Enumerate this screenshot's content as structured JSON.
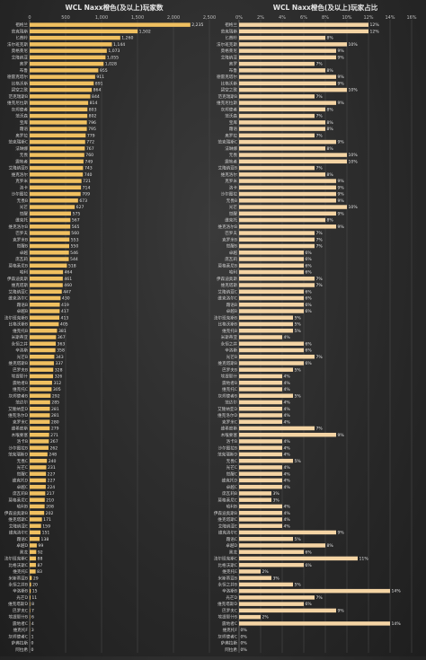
{
  "chart_data": [
    {
      "type": "bar",
      "orientation": "horizontal",
      "title": "WCL Naxx橙色(及以上)玩家数",
      "xlim": [
        0,
        2500
      ],
      "xticks": [
        0,
        500,
        1000,
        1500,
        2000,
        2500
      ],
      "xtick_labels": [
        "0",
        "500",
        "1,000",
        "1,500",
        "2,000",
        "2,500"
      ],
      "grid": true,
      "bar_color": "#f0c060",
      "categories": [
        "祖格兰",
        "范克瑞斯",
        "匕首岭",
        "法尔班克斯",
        "莫格莱尼",
        "艾隆纳亚",
        "奥罗",
        "布鲁",
        "德雷克塔尔",
        "比格沃斯",
        "碧空之歌",
        "范克瑞斯B",
        "维克尼拉斯",
        "灰烬使者",
        "范沃森",
        "宝库",
        "霜语",
        "奥罗拉",
        "范克瑞斯C",
        "法琳娜",
        "无畏",
        "震地者",
        "艾隆纳亚B",
        "维克洛尔",
        "克罗米",
        "洛卡",
        "沙尔图拉",
        "无畏B",
        "光芒",
        "觉醒",
        "维克托",
        "维克洛尔B",
        "巴罗夫",
        "克罗米B",
        "觉醒B",
        "卓越",
        "席瓦莉",
        "莫格莱尼B",
        "哈利",
        "伊森迪奥斯",
        "维克塔斯",
        "艾隆纳亚C",
        "维克洛尔C",
        "霜语B",
        "卓越B",
        "法尔班克斯B",
        "比格沃斯B",
        "维克托B",
        "米斯蒂亚",
        "永恒之井",
        "辛洛斯",
        "光芒B",
        "维克塔斯B",
        "巴罗夫B",
        "埃提耶什",
        "震地者B",
        "维克托C",
        "灰烬使者B",
        "范达尔",
        "艾隆纳亚D",
        "维克洛尔D",
        "克罗米C",
        "维希度斯",
        "木喉要塞",
        "洛卡B",
        "沙尔图拉B",
        "范克瑞斯D",
        "无畏C",
        "光芒C",
        "觉醒C",
        "维克托D",
        "卓越C",
        "席瓦莉B",
        "莫格莱尼C",
        "哈利B",
        "伊森迪奥斯B",
        "维克塔斯C",
        "艾隆纳亚E",
        "维克洛尔E",
        "霜语C",
        "卓越D",
        "黑龙",
        "法尔班克斯C",
        "比格沃斯C",
        "维克托E",
        "米斯蒂亚B",
        "永恒之井B",
        "辛洛斯B",
        "光芒D",
        "维克塔斯D",
        "巴罗夫C",
        "埃提耶什B",
        "震地者C",
        "维克托F",
        "灰烬使者C",
        "萨弗拉斯",
        "阿拉希"
      ],
      "values": [
        2235,
        1502,
        1260,
        1144,
        1073,
        1055,
        1028,
        955,
        911,
        891,
        864,
        844,
        814,
        803,
        802,
        796,
        795,
        779,
        772,
        767,
        760,
        749,
        743,
        740,
        721,
        714,
        709,
        673,
        627,
        575,
        567,
        565,
        560,
        553,
        550,
        546,
        544,
        518,
        464,
        461,
        460,
        447,
        430,
        419,
        417,
        413,
        405,
        381,
        367,
        363,
        358,
        343,
        337,
        328,
        326,
        312,
        305,
        292,
        285,
        281,
        281,
        280,
        279,
        271,
        267,
        262,
        248,
        240,
        231,
        227,
        227,
        224,
        217,
        210,
        208,
        202,
        171,
        159,
        151,
        138,
        99,
        92,
        88,
        87,
        83,
        29,
        20,
        15,
        11,
        8,
        7,
        6,
        4,
        3,
        1,
        0,
        0
      ]
    },
    {
      "type": "bar",
      "orientation": "horizontal",
      "title": "WCL Naxx橙色(及以上)玩家占比",
      "xlim": [
        0,
        16
      ],
      "xticks": [
        0,
        2,
        4,
        6,
        8,
        10,
        12,
        14,
        16
      ],
      "xtick_labels": [
        "0%",
        "2%",
        "4%",
        "6%",
        "8%",
        "10%",
        "12%",
        "14%",
        "16%"
      ],
      "grid": true,
      "bar_color": "#f4d4a4",
      "categories": [
        "祖格兰",
        "范克瑞斯",
        "匕首岭",
        "法尔班克斯",
        "莫格莱尼",
        "艾隆纳亚",
        "奥罗",
        "布鲁",
        "德雷克塔尔",
        "比格沃斯",
        "碧空之歌",
        "范克瑞斯B",
        "维克尼拉斯",
        "灰烬使者",
        "范沃森",
        "宝库",
        "霜语",
        "奥罗拉",
        "范克瑞斯C",
        "法琳娜",
        "无畏",
        "震地者",
        "艾隆纳亚B",
        "维克洛尔",
        "克罗米",
        "洛卡",
        "沙尔图拉",
        "无畏B",
        "光芒",
        "觉醒",
        "维克托",
        "维克洛尔B",
        "巴罗夫",
        "克罗米B",
        "觉醒B",
        "卓越",
        "席瓦莉",
        "莫格莱尼B",
        "哈利",
        "伊森迪奥斯",
        "维克塔斯",
        "艾隆纳亚C",
        "维克洛尔C",
        "霜语B",
        "卓越B",
        "法尔班克斯B",
        "比格沃斯B",
        "维克托B",
        "米斯蒂亚",
        "永恒之井",
        "辛洛斯",
        "光芒B",
        "维克塔斯B",
        "巴罗夫B",
        "埃提耶什",
        "震地者B",
        "维克托C",
        "灰烬使者B",
        "范达尔",
        "艾隆纳亚D",
        "维克洛尔D",
        "克罗米C",
        "维希度斯",
        "木喉要塞",
        "洛卡B",
        "沙尔图拉B",
        "范克瑞斯D",
        "无畏C",
        "光芒C",
        "觉醒C",
        "维克托D",
        "卓越C",
        "席瓦莉B",
        "莫格莱尼C",
        "哈利B",
        "伊森迪奥斯B",
        "维克塔斯C",
        "艾隆纳亚E",
        "维克洛尔E",
        "霜语C",
        "卓越D",
        "黑龙",
        "法尔班克斯C",
        "比格沃斯C",
        "维克托E",
        "米斯蒂亚B",
        "永恒之井B",
        "辛洛斯B",
        "光芒D",
        "维克塔斯D",
        "巴罗夫C",
        "埃提耶什B",
        "震地者C",
        "维克托F",
        "灰烬使者C",
        "萨弗拉斯",
        "阿拉希"
      ],
      "values": [
        12,
        12,
        8,
        10,
        9,
        9,
        7,
        8,
        9,
        9,
        10,
        7,
        9,
        8,
        7,
        8,
        8,
        7,
        9,
        8,
        10,
        10,
        7,
        8,
        9,
        9,
        9,
        9,
        10,
        9,
        8,
        9,
        7,
        7,
        7,
        6,
        6,
        6,
        6,
        7,
        7,
        6,
        6,
        6,
        6,
        5,
        5,
        5,
        4,
        6,
        6,
        7,
        6,
        5,
        4,
        4,
        4,
        5,
        4,
        4,
        4,
        4,
        7,
        9,
        4,
        4,
        4,
        5,
        4,
        4,
        4,
        4,
        3,
        3,
        4,
        4,
        4,
        4,
        9,
        5,
        8,
        6,
        11,
        6,
        2,
        3,
        5,
        14,
        7,
        6,
        9,
        2,
        14,
        0,
        0,
        0,
        0
      ]
    }
  ]
}
